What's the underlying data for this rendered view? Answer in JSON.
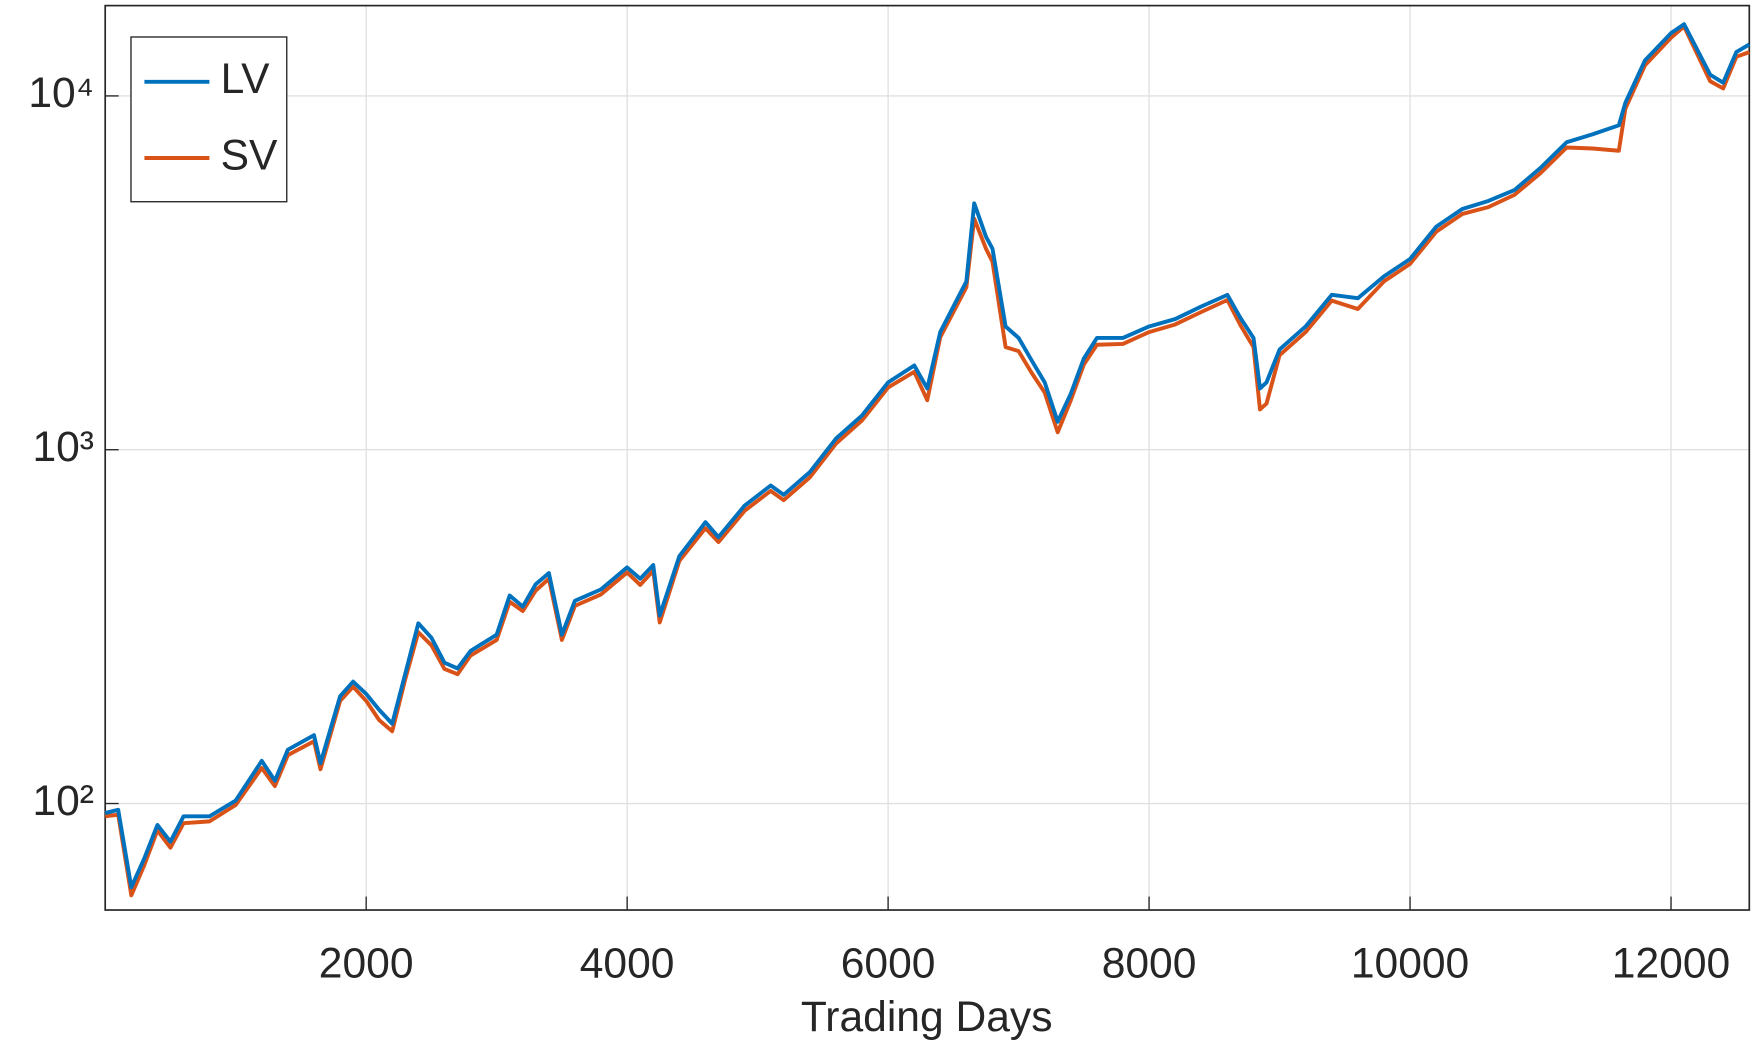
{
  "chart_data": {
    "type": "line",
    "xlabel": "Trading Days",
    "x": [
      0,
      100,
      200,
      300,
      400,
      500,
      600,
      800,
      1000,
      1200,
      1300,
      1400,
      1600,
      1650,
      1800,
      1900,
      2000,
      2100,
      2200,
      2300,
      2400,
      2500,
      2600,
      2700,
      2800,
      3000,
      3100,
      3200,
      3300,
      3400,
      3500,
      3600,
      3800,
      4000,
      4100,
      4200,
      4250,
      4400,
      4600,
      4700,
      4900,
      5100,
      5200,
      5400,
      5600,
      5800,
      6000,
      6200,
      6300,
      6400,
      6600,
      6660,
      6750,
      6800,
      6900,
      7000,
      7100,
      7200,
      7300,
      7400,
      7500,
      7600,
      7800,
      8000,
      8200,
      8400,
      8600,
      8700,
      8800,
      8850,
      8900,
      9000,
      9200,
      9400,
      9600,
      9800,
      10000,
      10200,
      10400,
      10600,
      10800,
      11000,
      11200,
      11400,
      11600,
      11650,
      11800,
      12000,
      12100,
      12300,
      12400,
      12500,
      12600
    ],
    "series": [
      {
        "name": "LV",
        "color": "#0072bd",
        "values": [
          94,
          96,
          58,
          70,
          87,
          78,
          92,
          92,
          102,
          132,
          116,
          142,
          156,
          130,
          201,
          221,
          204,
          184,
          168,
          233,
          323,
          294,
          250,
          241,
          270,
          300,
          387,
          360,
          417,
          448,
          300,
          374,
          403,
          465,
          432,
          472,
          340,
          500,
          624,
          566,
          695,
          792,
          746,
          864,
          1075,
          1250,
          1550,
          1730,
          1490,
          2150,
          2990,
          4970,
          4000,
          3700,
          2230,
          2070,
          1790,
          1550,
          1200,
          1440,
          1810,
          2070,
          2070,
          2230,
          2340,
          2540,
          2740,
          2360,
          2070,
          1490,
          1550,
          1920,
          2230,
          2740,
          2680,
          3090,
          3460,
          4270,
          4790,
          5050,
          5420,
          6260,
          7400,
          7790,
          8260,
          9560,
          12600,
          15040,
          15950,
          11480,
          10900,
          13300,
          13980
        ]
      },
      {
        "name": "SV",
        "color": "#d95319",
        "values": [
          92,
          93,
          55,
          67,
          84,
          75,
          88,
          89,
          99,
          126,
          112,
          137,
          150,
          125,
          195,
          214,
          195,
          172,
          160,
          225,
          305,
          280,
          240,
          232,
          262,
          290,
          372,
          350,
          400,
          432,
          290,
          362,
          390,
          450,
          415,
          455,
          325,
          485,
          600,
          548,
          672,
          765,
          720,
          835,
          1040,
          1210,
          1500,
          1660,
          1380,
          2080,
          2880,
          4500,
          3700,
          3400,
          1950,
          1900,
          1650,
          1450,
          1120,
          1380,
          1740,
          1980,
          1990,
          2150,
          2260,
          2450,
          2650,
          2250,
          1950,
          1300,
          1350,
          1850,
          2150,
          2640,
          2500,
          2990,
          3350,
          4130,
          4640,
          4850,
          5250,
          6050,
          7150,
          7100,
          7000,
          9200,
          12200,
          14600,
          15700,
          11000,
          10500,
          12900,
          13300
        ]
      }
    ],
    "xlim": [
      0,
      12600
    ],
    "xticks": [
      2000,
      4000,
      6000,
      8000,
      10000,
      12000
    ],
    "ylim": [
      50,
      18000
    ],
    "log_y": true,
    "yticks": [
      {
        "value": 100,
        "label": "10²"
      },
      {
        "value": 1000,
        "label": "10³"
      },
      {
        "value": 10000,
        "label": "10⁴"
      }
    ],
    "grid": true,
    "legend": "upper left"
  }
}
